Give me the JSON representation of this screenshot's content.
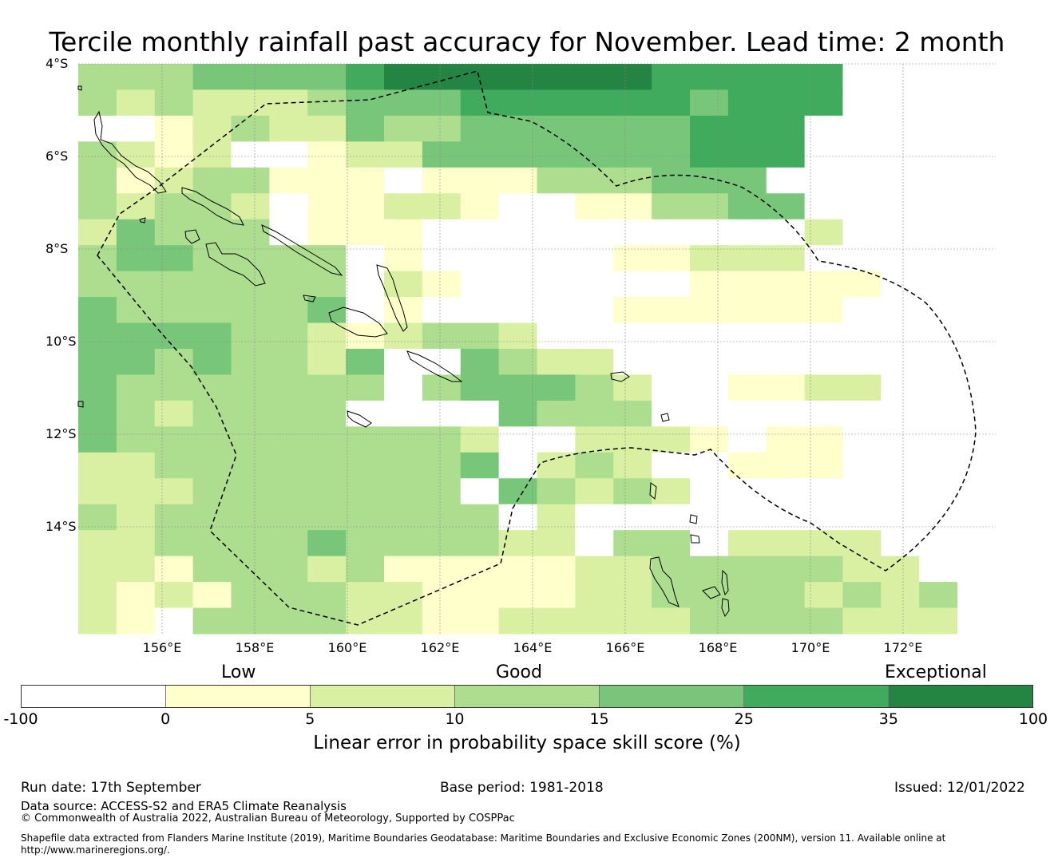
{
  "title": "Tercile monthly rainfall past accuracy for November. Lead time: 2 month",
  "map": {
    "lat_labels": [
      "4°S",
      "6°S",
      "8°S",
      "10°S",
      "12°S",
      "14°S"
    ],
    "lon_labels": [
      "156°E",
      "158°E",
      "160°E",
      "162°E",
      "164°E",
      "166°E",
      "168°E",
      "170°E",
      "172°E"
    ],
    "grid_rows": [
      "22233334555555544444",
      "21211123334444443444",
      "..01211322333333444",
      "2101..0113333333444",
      "20122000.000222333",
      "21221.00110..002233",
      "13222.000..........1",
      "2332222.0.....00111",
      "2222222.10......00000",
      "3222223.0.....000000",
      "333322101221.......",
      "33232213..3211......",
      "32222222.233321..0011",
      "3212222....3222.....",
      "32222222221..1110.00",
      "11222222223.121..000",
      "1112222222.32121.....",
      "21222222222.1........",
      "1122223222211.22.1111",
      "1102221200000112222211",
      "10102221100001122221212",
      "10.22221100111112222111"
    ],
    "palette": [
      "#ffffcc",
      "#d9f0a3",
      "#addd8e",
      "#78c679",
      "#41ab5d",
      "#238443"
    ],
    "no_skill_color": "#ffffff"
  },
  "legend": {
    "categories": [
      "Low",
      "Good",
      "Exceptional"
    ],
    "colors": [
      "#ffffff",
      "#ffffcc",
      "#d9f0a3",
      "#addd8e",
      "#78c679",
      "#41ab5d",
      "#238443"
    ],
    "ticks": [
      "-100",
      "0",
      "5",
      "10",
      "15",
      "25",
      "35",
      "100"
    ],
    "label": "Linear error in probability space skill score (%)"
  },
  "footer": {
    "run_date": "Run date: 17th September",
    "base_period": "Base period: 1981-2018",
    "issued": "Issued: 12/01/2022",
    "data_source": "Data source: ACCESS-S2 and ERA5 Climate Reanalysis",
    "copyright": "© Commonwealth of Australia 2022, Australian Bureau of Meteorology, Supported by COSPPac",
    "shapefile": "Shapefile data extracted from Flanders Marine Institute (2019), Maritime Boundaries Geodatabase: Maritime Boundaries and Exclusive Economic Zones (200NM), version 11. Available online at http://www.marineregions.org/."
  }
}
